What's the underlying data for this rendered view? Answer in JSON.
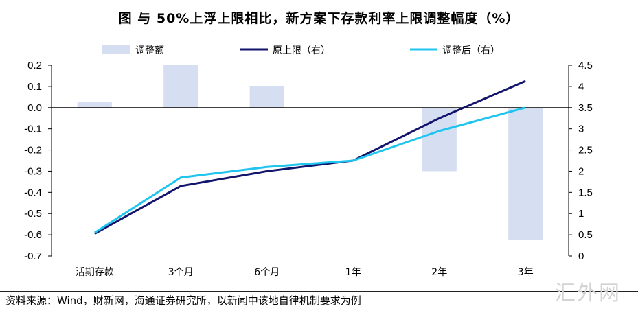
{
  "figure": {
    "title": "图    与 50%上浮上限相比，新方案下存款利率上限调整幅度（%）",
    "source": "资料来源：Wind，财新网，海通证券研究所，以新闻中该地自律机制要求为例",
    "watermark": "汇外网"
  },
  "colors": {
    "bar": "#d6dff2",
    "original": "#12156b",
    "adjusted": "#1fc4ef",
    "axis": "#000000"
  },
  "chart_data": {
    "type": "bar+line",
    "categories": [
      "活期存款",
      "3个月",
      "6个月",
      "1年",
      "2年",
      "3年"
    ],
    "bar_series": {
      "name": "调整额",
      "axis": "left",
      "values": [
        0.025,
        0.2,
        0.1,
        0,
        -0.3,
        -0.625
      ]
    },
    "line_series": [
      {
        "name": "原上限（右）",
        "axis": "right",
        "values": [
          0.525,
          1.65,
          2.0,
          2.25,
          3.25,
          4.125
        ]
      },
      {
        "name": "调整后（右）",
        "axis": "right",
        "values": [
          0.55,
          1.85,
          2.1,
          2.25,
          2.95,
          3.5
        ]
      }
    ],
    "left_axis": {
      "min": -0.7,
      "max": 0.2,
      "step": 0.1,
      "ticks": [
        "0.2",
        "0.1",
        "0.0",
        "-0.1",
        "-0.2",
        "-0.3",
        "-0.4",
        "-0.5",
        "-0.6",
        "-0.7"
      ]
    },
    "right_axis": {
      "min": 0,
      "max": 4.5,
      "step": 0.5,
      "ticks": [
        "4.5",
        "4",
        "3.5",
        "3",
        "2.5",
        "2",
        "1.5",
        "1",
        "0.5",
        "0"
      ]
    },
    "legend": [
      "调整额",
      "原上限（右）",
      "调整后（右）"
    ],
    "legend_position": "top"
  }
}
